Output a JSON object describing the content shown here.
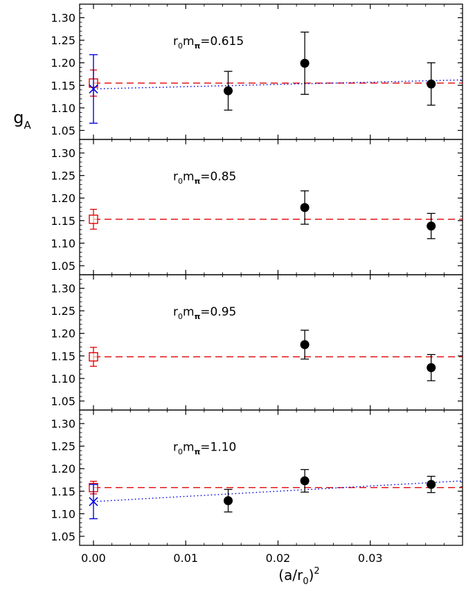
{
  "chart_data": {
    "type": "scatter",
    "xlabel": {
      "main": "(a/r",
      "sub": "0",
      "tail": ")",
      "sup": "2"
    },
    "ylabel": {
      "main": "g",
      "sub": "A"
    },
    "xlim": [
      -0.0015,
      0.04
    ],
    "ylim": [
      1.03,
      1.33
    ],
    "x_ticks": [
      {
        "value": 0.0,
        "label": "0.00"
      },
      {
        "value": 0.01,
        "label": "0.01"
      },
      {
        "value": 0.02,
        "label": "0.02"
      },
      {
        "value": 0.03,
        "label": "0.03"
      }
    ],
    "y_ticks": [
      {
        "value": 1.05,
        "label": "1.05"
      },
      {
        "value": 1.1,
        "label": "1.10"
      },
      {
        "value": 1.15,
        "label": "1.15"
      },
      {
        "value": 1.2,
        "label": "1.20"
      },
      {
        "value": 1.25,
        "label": "1.25"
      },
      {
        "value": 1.3,
        "label": "1.30"
      }
    ],
    "grid": false,
    "panels": [
      {
        "label": {
          "r": "r",
          "r_sub": "0",
          "m": "m",
          "m_sub": "π",
          "value": "=0.615"
        },
        "points": [
          {
            "x": 0.0146,
            "y": 1.138,
            "err": 0.043
          },
          {
            "x": 0.0229,
            "y": 1.199,
            "err": 0.069
          },
          {
            "x": 0.0366,
            "y": 1.153,
            "err": 0.047
          }
        ],
        "constant_fit": {
          "value": 1.155,
          "x0_err": 0.029
        },
        "linear_fit": {
          "intercept": 1.142,
          "slope": 0.5,
          "x0_err": 0.076
        }
      },
      {
        "label": {
          "r": "r",
          "r_sub": "0",
          "m": "m",
          "m_sub": "π",
          "value": "=0.85"
        },
        "points": [
          {
            "x": 0.0229,
            "y": 1.179,
            "err": 0.037
          },
          {
            "x": 0.0366,
            "y": 1.138,
            "err": 0.028
          }
        ],
        "constant_fit": {
          "value": 1.153,
          "x0_err": 0.022
        },
        "linear_fit": null
      },
      {
        "label": {
          "r": "r",
          "r_sub": "0",
          "m": "m",
          "m_sub": "π",
          "value": "=0.95"
        },
        "points": [
          {
            "x": 0.0229,
            "y": 1.175,
            "err": 0.032
          },
          {
            "x": 0.0366,
            "y": 1.124,
            "err": 0.029
          }
        ],
        "constant_fit": {
          "value": 1.148,
          "x0_err": 0.021
        },
        "linear_fit": null
      },
      {
        "label": {
          "r": "r",
          "r_sub": "0",
          "m": "m",
          "m_sub": "π",
          "value": "=1.10"
        },
        "points": [
          {
            "x": 0.0146,
            "y": 1.129,
            "err": 0.025
          },
          {
            "x": 0.0229,
            "y": 1.173,
            "err": 0.025
          },
          {
            "x": 0.0366,
            "y": 1.165,
            "err": 0.018
          }
        ],
        "constant_fit": {
          "value": 1.158,
          "x0_err": 0.014
        },
        "linear_fit": {
          "intercept": 1.127,
          "slope": 1.15,
          "x0_err": 0.038
        }
      }
    ],
    "colors": {
      "points": "#000000",
      "constant_fit": "#e00000",
      "linear_fit": "#0000e0",
      "axes": "#000000"
    }
  }
}
